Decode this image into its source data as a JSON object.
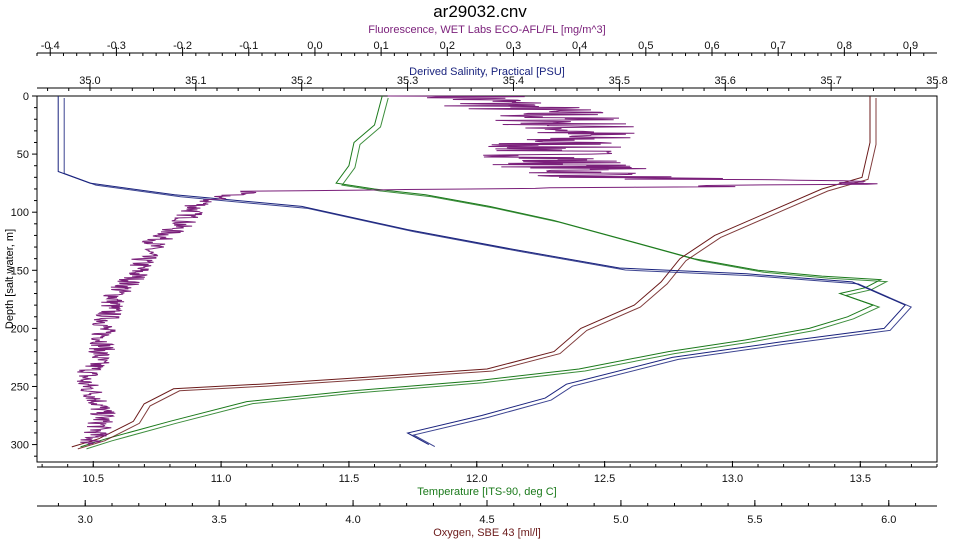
{
  "chart_data": {
    "type": "line",
    "title": "ar29032.cnv",
    "grid": false,
    "legend": "none",
    "y_axis": {
      "label": "Depth [salt water, m]",
      "range": [
        0,
        315
      ],
      "inverted": true,
      "ticks": [
        "0",
        "50",
        "100",
        "150",
        "200",
        "250",
        "300"
      ],
      "color": "#000000"
    },
    "top_axes": [
      {
        "key": "fluorescence",
        "label": "Fluorescence, WET Labs ECO-AFL/FL [mg/m^3]",
        "color": "#7a1f7a",
        "range": [
          -0.42,
          0.94
        ],
        "ticks": [
          "-0.4",
          "-0.3",
          "-0.2",
          "-0.1",
          "0.0",
          "0.1",
          "0.2",
          "0.3",
          "0.4",
          "0.5",
          "0.6",
          "0.7",
          "0.8",
          "0.9"
        ]
      },
      {
        "key": "salinity",
        "label": "Derived Salinity, Practical [PSU]",
        "color": "#1a237e",
        "range": [
          34.95,
          35.8
        ],
        "ticks": [
          "35.0",
          "35.1",
          "35.2",
          "35.3",
          "35.4",
          "35.5",
          "35.6",
          "35.7",
          "35.8"
        ]
      }
    ],
    "bottom_axes": [
      {
        "key": "temperature",
        "label": "Temperature [ITS-90, deg C]",
        "color": "#1b7a1b",
        "range": [
          10.28,
          13.8
        ],
        "ticks": [
          "10.5",
          "11.0",
          "11.5",
          "12.0",
          "12.5",
          "13.0",
          "13.5"
        ]
      },
      {
        "key": "oxygen",
        "label": "Oxygen, SBE 43 [ml/l]",
        "color": "#6b1a1a",
        "range": [
          2.82,
          6.18
        ],
        "ticks": [
          "3.0",
          "3.5",
          "4.0",
          "4.5",
          "5.0",
          "5.5",
          "6.0"
        ]
      }
    ],
    "series": [
      {
        "key": "temperature",
        "color": "#1b7a1b",
        "points": [
          [
            11.63,
            0
          ],
          [
            11.6,
            25
          ],
          [
            11.52,
            40
          ],
          [
            11.5,
            60
          ],
          [
            11.45,
            75
          ],
          [
            11.6,
            80
          ],
          [
            11.8,
            85
          ],
          [
            12.05,
            95
          ],
          [
            12.3,
            107
          ],
          [
            12.6,
            125
          ],
          [
            12.85,
            140
          ],
          [
            13.1,
            150
          ],
          [
            13.35,
            155
          ],
          [
            13.58,
            158
          ],
          [
            13.52,
            165
          ],
          [
            13.42,
            170
          ],
          [
            13.55,
            180
          ],
          [
            13.45,
            190
          ],
          [
            13.3,
            200
          ],
          [
            13.05,
            210
          ],
          [
            12.75,
            220
          ],
          [
            12.4,
            235
          ],
          [
            12.0,
            245
          ],
          [
            11.5,
            254
          ],
          [
            11.1,
            263
          ],
          [
            10.8,
            280
          ],
          [
            10.55,
            295
          ],
          [
            10.45,
            302
          ]
        ]
      },
      {
        "key": "oxygen",
        "color": "#6b1a1a",
        "points": [
          [
            5.93,
            0
          ],
          [
            5.93,
            40
          ],
          [
            5.9,
            70
          ],
          [
            5.75,
            80
          ],
          [
            5.55,
            100
          ],
          [
            5.35,
            120
          ],
          [
            5.22,
            140
          ],
          [
            5.15,
            160
          ],
          [
            5.05,
            180
          ],
          [
            4.85,
            200
          ],
          [
            4.75,
            220
          ],
          [
            4.5,
            235
          ],
          [
            4.05,
            242
          ],
          [
            3.65,
            248
          ],
          [
            3.33,
            252
          ],
          [
            3.22,
            265
          ],
          [
            3.18,
            280
          ],
          [
            3.05,
            295
          ],
          [
            2.95,
            302
          ]
        ]
      },
      {
        "key": "salinity",
        "color": "#1a237e",
        "points": [
          [
            34.97,
            0
          ],
          [
            34.97,
            40
          ],
          [
            34.97,
            65
          ],
          [
            35.0,
            75
          ],
          [
            35.08,
            85
          ],
          [
            35.2,
            95
          ],
          [
            35.3,
            115
          ],
          [
            35.4,
            132
          ],
          [
            35.5,
            148
          ],
          [
            35.62,
            153
          ],
          [
            35.72,
            160
          ],
          [
            35.77,
            180
          ],
          [
            35.75,
            200
          ],
          [
            35.65,
            212
          ],
          [
            35.55,
            225
          ],
          [
            35.45,
            248
          ],
          [
            35.43,
            260
          ],
          [
            35.37,
            275
          ],
          [
            35.3,
            290
          ],
          [
            35.32,
            300
          ]
        ]
      },
      {
        "key": "fluorescence",
        "color": "#7a1f7a",
        "style": "noisy",
        "points": [
          [
            0.22,
            0
          ],
          [
            0.35,
            15
          ],
          [
            0.4,
            30
          ],
          [
            0.35,
            45
          ],
          [
            0.38,
            60
          ],
          [
            0.45,
            70
          ],
          [
            0.85,
            75
          ],
          [
            0.55,
            78
          ],
          [
            -0.1,
            82
          ],
          [
            -0.15,
            88
          ],
          [
            -0.18,
            95
          ],
          [
            -0.2,
            110
          ],
          [
            -0.24,
            125
          ],
          [
            -0.26,
            140
          ],
          [
            -0.27,
            155
          ],
          [
            -0.3,
            170
          ],
          [
            -0.31,
            185
          ],
          [
            -0.32,
            200
          ],
          [
            -0.32,
            215
          ],
          [
            -0.33,
            230
          ],
          [
            -0.35,
            245
          ],
          [
            -0.33,
            260
          ],
          [
            -0.32,
            275
          ],
          [
            -0.33,
            290
          ],
          [
            -0.34,
            300
          ]
        ]
      }
    ]
  }
}
